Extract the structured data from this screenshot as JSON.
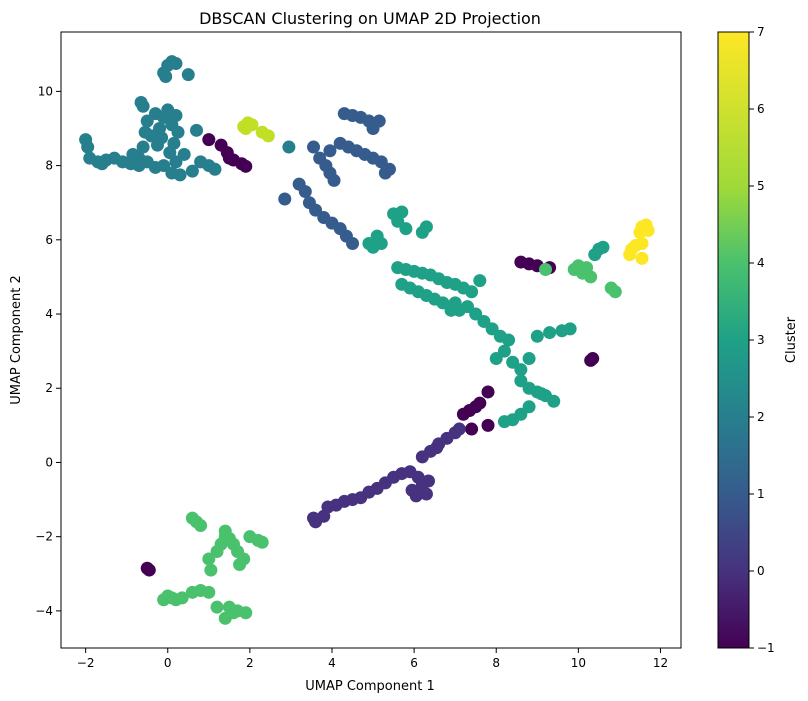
{
  "chart_data": {
    "type": "scatter",
    "title": "DBSCAN Clustering on UMAP 2D Projection",
    "xlabel": "UMAP Component 1",
    "ylabel": "UMAP Component 2",
    "xlim": [
      -2.6,
      12.5
    ],
    "ylim": [
      -5,
      11.6
    ],
    "xticks": [
      -2,
      0,
      2,
      4,
      6,
      8,
      10,
      12
    ],
    "yticks": [
      -4,
      -2,
      0,
      2,
      4,
      6,
      8,
      10
    ],
    "grid": false,
    "colormap": "viridis",
    "colorbar": {
      "label": "Cluster",
      "range": [
        -1,
        7
      ],
      "ticks": [
        -1,
        0,
        1,
        2,
        3,
        4,
        5,
        6,
        7
      ]
    },
    "series": [
      {
        "cluster": -1,
        "color": "#440154",
        "points": [
          [
            1.0,
            8.7
          ],
          [
            1.3,
            8.55
          ],
          [
            1.45,
            8.35
          ],
          [
            1.6,
            8.15
          ],
          [
            1.8,
            8.05
          ],
          [
            1.9,
            7.98
          ],
          [
            1.5,
            8.2
          ],
          [
            8.6,
            5.4
          ],
          [
            8.8,
            5.35
          ],
          [
            9.0,
            5.3
          ],
          [
            9.3,
            5.25
          ],
          [
            10.3,
            2.75
          ],
          [
            10.35,
            2.8
          ],
          [
            7.8,
            1.9
          ],
          [
            7.6,
            1.6
          ],
          [
            7.5,
            1.5
          ],
          [
            7.35,
            1.4
          ],
          [
            7.2,
            1.3
          ],
          [
            7.4,
            0.9
          ],
          [
            7.8,
            1.0
          ],
          [
            -0.45,
            -2.9
          ],
          [
            -0.5,
            -2.85
          ]
        ]
      },
      {
        "cluster": 0,
        "color": "#46327e",
        "points": [
          [
            3.55,
            -1.5
          ],
          [
            3.6,
            -1.6
          ],
          [
            3.8,
            -1.45
          ],
          [
            3.9,
            -1.2
          ],
          [
            4.1,
            -1.15
          ],
          [
            4.3,
            -1.05
          ],
          [
            4.5,
            -1.0
          ],
          [
            4.7,
            -0.95
          ],
          [
            4.9,
            -0.8
          ],
          [
            5.1,
            -0.7
          ],
          [
            5.3,
            -0.55
          ],
          [
            5.5,
            -0.4
          ],
          [
            5.7,
            -0.3
          ],
          [
            5.9,
            -0.25
          ],
          [
            6.1,
            -0.4
          ],
          [
            6.2,
            -0.6
          ],
          [
            6.3,
            -0.85
          ],
          [
            6.05,
            -0.9
          ],
          [
            5.95,
            -0.75
          ],
          [
            6.35,
            -0.5
          ],
          [
            6.2,
            0.15
          ],
          [
            6.4,
            0.3
          ],
          [
            6.6,
            0.5
          ],
          [
            6.8,
            0.65
          ],
          [
            7.0,
            0.8
          ],
          [
            7.1,
            0.9
          ],
          [
            6.55,
            0.4
          ]
        ]
      },
      {
        "cluster": 1,
        "color": "#365c8d",
        "points": [
          [
            2.85,
            7.1
          ],
          [
            3.2,
            7.5
          ],
          [
            3.35,
            7.3
          ],
          [
            3.45,
            7.0
          ],
          [
            3.6,
            6.8
          ],
          [
            3.8,
            6.6
          ],
          [
            4.0,
            6.45
          ],
          [
            4.2,
            6.3
          ],
          [
            4.35,
            6.1
          ],
          [
            4.5,
            5.9
          ],
          [
            3.55,
            8.5
          ],
          [
            3.7,
            8.2
          ],
          [
            3.85,
            8.0
          ],
          [
            3.95,
            7.8
          ],
          [
            4.05,
            7.6
          ],
          [
            4.2,
            8.6
          ],
          [
            4.4,
            8.5
          ],
          [
            4.6,
            8.4
          ],
          [
            4.8,
            8.3
          ],
          [
            5.0,
            8.2
          ],
          [
            5.2,
            8.1
          ],
          [
            5.4,
            7.9
          ],
          [
            4.3,
            9.4
          ],
          [
            4.5,
            9.35
          ],
          [
            4.7,
            9.3
          ],
          [
            4.9,
            9.2
          ],
          [
            5.0,
            9.0
          ],
          [
            5.15,
            9.2
          ],
          [
            3.95,
            8.4
          ],
          [
            5.3,
            7.8
          ]
        ]
      },
      {
        "cluster": 2,
        "color": "#277f8e",
        "points": [
          [
            -2.0,
            8.7
          ],
          [
            -1.95,
            8.5
          ],
          [
            -1.9,
            8.2
          ],
          [
            -1.7,
            8.1
          ],
          [
            -1.5,
            8.15
          ],
          [
            -1.3,
            8.2
          ],
          [
            -1.1,
            8.1
          ],
          [
            -0.9,
            8.05
          ],
          [
            -0.7,
            8.0
          ],
          [
            -0.5,
            8.1
          ],
          [
            -0.3,
            7.95
          ],
          [
            -0.1,
            8.0
          ],
          [
            0.1,
            7.8
          ],
          [
            0.3,
            7.75
          ],
          [
            0.6,
            7.85
          ],
          [
            0.8,
            8.1
          ],
          [
            1.0,
            8.0
          ],
          [
            1.15,
            7.9
          ],
          [
            -0.7,
            8.2
          ],
          [
            -0.6,
            8.5
          ],
          [
            -0.55,
            8.9
          ],
          [
            -0.5,
            9.2
          ],
          [
            -0.3,
            9.4
          ],
          [
            -0.1,
            9.3
          ],
          [
            0.1,
            9.1
          ],
          [
            0.25,
            8.9
          ],
          [
            0.15,
            8.6
          ],
          [
            0.05,
            8.35
          ],
          [
            -0.65,
            9.7
          ],
          [
            -0.6,
            9.6
          ],
          [
            -0.2,
            9.0
          ],
          [
            0.0,
            9.5
          ],
          [
            0.2,
            9.35
          ],
          [
            -0.1,
            10.5
          ],
          [
            0.0,
            10.7
          ],
          [
            0.1,
            10.8
          ],
          [
            0.2,
            10.75
          ],
          [
            -0.05,
            10.4
          ],
          [
            0.5,
            10.45
          ],
          [
            -0.4,
            8.8
          ],
          [
            -0.85,
            8.3
          ],
          [
            0.2,
            8.1
          ],
          [
            0.7,
            8.95
          ],
          [
            -1.6,
            8.05
          ],
          [
            0.4,
            8.3
          ],
          [
            -0.25,
            8.55
          ],
          [
            -0.15,
            8.75
          ],
          [
            2.95,
            8.5
          ]
        ]
      },
      {
        "cluster": 3,
        "color": "#1fa187",
        "points": [
          [
            4.9,
            5.9
          ],
          [
            5.0,
            5.8
          ],
          [
            5.1,
            6.1
          ],
          [
            5.2,
            5.9
          ],
          [
            5.5,
            6.7
          ],
          [
            5.7,
            6.75
          ],
          [
            5.6,
            6.5
          ],
          [
            5.8,
            6.3
          ],
          [
            6.2,
            6.2
          ],
          [
            6.3,
            6.35
          ],
          [
            5.6,
            5.25
          ],
          [
            5.8,
            5.2
          ],
          [
            6.0,
            5.15
          ],
          [
            6.2,
            5.1
          ],
          [
            6.4,
            5.05
          ],
          [
            6.6,
            4.95
          ],
          [
            6.8,
            4.85
          ],
          [
            7.0,
            4.8
          ],
          [
            7.2,
            4.7
          ],
          [
            7.4,
            4.6
          ],
          [
            7.0,
            4.3
          ],
          [
            7.3,
            4.2
          ],
          [
            7.5,
            4.0
          ],
          [
            7.7,
            3.8
          ],
          [
            7.9,
            3.6
          ],
          [
            8.1,
            3.4
          ],
          [
            8.3,
            3.3
          ],
          [
            5.7,
            4.8
          ],
          [
            5.9,
            4.7
          ],
          [
            6.1,
            4.6
          ],
          [
            6.3,
            4.5
          ],
          [
            6.5,
            4.4
          ],
          [
            6.7,
            4.3
          ],
          [
            8.0,
            2.8
          ],
          [
            8.2,
            3.0
          ],
          [
            8.4,
            2.7
          ],
          [
            8.6,
            2.5
          ],
          [
            8.8,
            2.8
          ],
          [
            9.0,
            3.4
          ],
          [
            9.3,
            3.5
          ],
          [
            9.6,
            3.55
          ],
          [
            9.8,
            3.6
          ],
          [
            8.6,
            2.2
          ],
          [
            8.8,
            2.0
          ],
          [
            9.0,
            1.9
          ],
          [
            9.2,
            1.8
          ],
          [
            9.4,
            1.65
          ],
          [
            9.1,
            1.85
          ],
          [
            8.2,
            1.1
          ],
          [
            8.4,
            1.15
          ],
          [
            8.6,
            1.3
          ],
          [
            8.8,
            1.5
          ],
          [
            10.4,
            5.6
          ],
          [
            10.5,
            5.75
          ],
          [
            10.6,
            5.8
          ],
          [
            7.6,
            4.9
          ],
          [
            7.1,
            4.1
          ],
          [
            6.9,
            4.1
          ]
        ]
      },
      {
        "cluster": 4,
        "color": "#4ac16d",
        "points": [
          [
            9.2,
            5.2
          ],
          [
            9.9,
            5.2
          ],
          [
            10.0,
            5.3
          ],
          [
            10.1,
            5.1
          ],
          [
            10.2,
            5.25
          ],
          [
            10.3,
            5.0
          ],
          [
            10.8,
            4.7
          ],
          [
            10.9,
            4.6
          ],
          [
            0.6,
            -1.5
          ],
          [
            0.7,
            -1.6
          ],
          [
            0.8,
            -1.7
          ],
          [
            1.0,
            -2.6
          ],
          [
            1.05,
            -2.9
          ],
          [
            1.2,
            -2.4
          ],
          [
            1.3,
            -2.2
          ],
          [
            1.4,
            -2.0
          ],
          [
            1.5,
            -2.05
          ],
          [
            1.6,
            -2.2
          ],
          [
            1.7,
            -2.4
          ],
          [
            1.85,
            -2.6
          ],
          [
            1.75,
            -2.75
          ],
          [
            2.0,
            -2.0
          ],
          [
            2.2,
            -2.1
          ],
          [
            2.3,
            -2.15
          ],
          [
            1.4,
            -1.85
          ],
          [
            0.6,
            -3.5
          ],
          [
            0.8,
            -3.45
          ],
          [
            1.0,
            -3.5
          ],
          [
            1.2,
            -3.9
          ],
          [
            1.5,
            -3.9
          ],
          [
            1.7,
            -4.0
          ],
          [
            1.4,
            -4.2
          ],
          [
            1.6,
            -4.05
          ],
          [
            1.9,
            -4.05
          ],
          [
            0.0,
            -3.6
          ],
          [
            0.1,
            -3.65
          ],
          [
            0.2,
            -3.7
          ],
          [
            -0.1,
            -3.7
          ],
          [
            0.35,
            -3.65
          ]
        ]
      },
      {
        "cluster": 5,
        "color": "#9fda3a",
        "points": []
      },
      {
        "cluster": 6,
        "color": "#c0df25",
        "points": [
          [
            1.85,
            9.05
          ],
          [
            1.95,
            9.15
          ],
          [
            2.05,
            9.1
          ],
          [
            1.9,
            9.0
          ],
          [
            2.3,
            8.9
          ],
          [
            2.45,
            8.8
          ]
        ]
      },
      {
        "cluster": 7,
        "color": "#fde725",
        "points": [
          [
            11.55,
            6.35
          ],
          [
            11.65,
            6.4
          ],
          [
            11.7,
            6.25
          ],
          [
            11.5,
            6.2
          ],
          [
            11.55,
            5.9
          ],
          [
            11.4,
            5.85
          ],
          [
            11.3,
            5.75
          ],
          [
            11.25,
            5.6
          ],
          [
            11.55,
            5.5
          ]
        ]
      }
    ]
  }
}
